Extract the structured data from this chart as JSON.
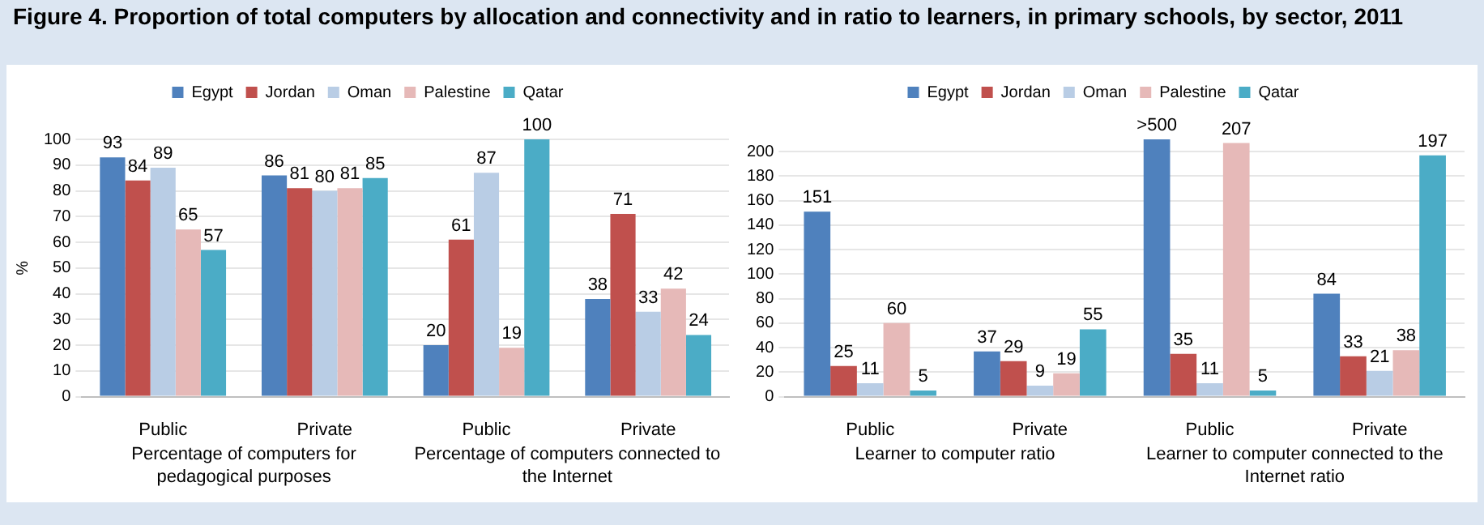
{
  "chart_data": [
    {
      "type": "bar",
      "title": "Figure 4. Proportion of total computers by allocation and connectivity and in ratio to learners, in primary schools, by sector, 2011",
      "ylabel": "%",
      "categories": [
        "Public",
        "Private",
        "Public",
        "Private"
      ],
      "series": [
        {
          "name": "Egypt",
          "color": "#4f81bd",
          "values": [
            93,
            86,
            20,
            38
          ]
        },
        {
          "name": "Jordan",
          "color": "#c0504d",
          "values": [
            84,
            81,
            61,
            71
          ]
        },
        {
          "name": "Oman",
          "color": "#b9cde5",
          "values": [
            89,
            80,
            87,
            33
          ]
        },
        {
          "name": "Palestine",
          "color": "#e6b9b8",
          "values": [
            65,
            81,
            19,
            42
          ]
        },
        {
          "name": "Qatar",
          "color": "#4bacc6",
          "values": [
            57,
            85,
            100,
            24
          ]
        }
      ],
      "ylim": [
        0,
        100
      ],
      "yticks": [
        0,
        10,
        20,
        30,
        40,
        50,
        60,
        70,
        80,
        90,
        100
      ],
      "grid": "y",
      "legend": "top",
      "data_labels": true,
      "annotations": [
        "Percentage of computers for pedagogical purposes",
        "Percentage of computers connected to the Internet"
      ]
    },
    {
      "type": "bar",
      "categories": [
        "Public",
        "Private",
        "Public",
        "Private"
      ],
      "series": [
        {
          "name": "Egypt",
          "color": "#4f81bd",
          "values": [
            151,
            37,
            210,
            84
          ],
          "value_labels": [
            "151",
            "37",
            ">500",
            "84"
          ]
        },
        {
          "name": "Jordan",
          "color": "#c0504d",
          "values": [
            25,
            29,
            35,
            33
          ],
          "value_labels": [
            "25",
            "29",
            "35",
            "33"
          ]
        },
        {
          "name": "Oman",
          "color": "#b9cde5",
          "values": [
            11,
            9,
            11,
            21
          ],
          "value_labels": [
            "11",
            "9",
            "11",
            "21"
          ]
        },
        {
          "name": "Palestine",
          "color": "#e6b9b8",
          "values": [
            60,
            19,
            207,
            38
          ],
          "value_labels": [
            "60",
            "19",
            "207",
            "38"
          ]
        },
        {
          "name": "Qatar",
          "color": "#4bacc6",
          "values": [
            5,
            55,
            5,
            197
          ],
          "value_labels": [
            "5",
            "55",
            "5",
            "197"
          ]
        }
      ],
      "ylim": [
        0,
        210
      ],
      "yticks": [
        0,
        20,
        40,
        60,
        80,
        100,
        120,
        140,
        160,
        180,
        200
      ],
      "grid": "y",
      "legend": "top",
      "annotations": [
        "Learner to computer ratio",
        "Learner to computer connected to the Internet ratio"
      ]
    }
  ]
}
